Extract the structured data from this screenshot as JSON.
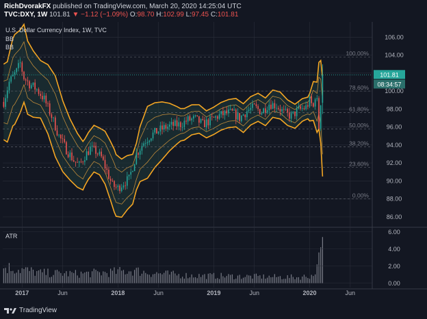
{
  "header": {
    "publisher": "RichDvorakFX",
    "published_text": "published on TradingView.com, March 20, 2020 14:25:04 UTC",
    "symbol": "TVC:DXY, 1W",
    "last": "101.81",
    "change": "▼ −1.12 (−1.09%)",
    "o_label": "O:",
    "o_value": "98.70",
    "h_label": "H:",
    "h_value": "102.99",
    "l_label": "L:",
    "l_value": "97.45",
    "c_label": "C:",
    "c_value": "101.81"
  },
  "indicators": {
    "title": "U.S. Dollar Currency Index, 1W, TVC",
    "bb1": "BB",
    "bb2": "BB",
    "atr": "ATR"
  },
  "footer": {
    "brand": "TradingView"
  },
  "colors": {
    "background": "#131722",
    "up": "#26a69a",
    "down": "#ef5350",
    "band_outer": "#f5a623",
    "band_inner": "#e8a33d",
    "band_fill": "#1f3b3a",
    "grid": "#2a2e39",
    "fib": "#5d606b",
    "price_tag": "#26a69a",
    "timer_tag": "#2a6f6b",
    "atr_bar": "#787b86"
  },
  "chart_data": {
    "type": "candlestick",
    "title": "U.S. Dollar Currency Index, 1W, TVC",
    "y_axis_ticks": [
      "86.00",
      "88.00",
      "90.00",
      "92.00",
      "94.00",
      "96.00",
      "98.00",
      "100.00",
      "102.00",
      "104.00",
      "106.00"
    ],
    "ylim": [
      85,
      107.7
    ],
    "x_axis_ticks": [
      "2017",
      "Jun",
      "2018",
      "Jun",
      "2019",
      "Jun",
      "2020",
      "Jun"
    ],
    "x_tick_weeks": [
      10,
      32,
      62,
      84,
      114,
      136,
      166,
      188
    ],
    "weeks_in_view": 196,
    "price_tag": "101.81",
    "countdown_tag": "08:34:57",
    "fibonacci": [
      {
        "label": "100.00%",
        "value": 103.8
      },
      {
        "label": "78.60%",
        "value": 100.0
      },
      {
        "label": "61.80%",
        "value": 97.6
      },
      {
        "label": "50.00%",
        "value": 95.8
      },
      {
        "label": "38.20%",
        "value": 93.8
      },
      {
        "label": "23.60%",
        "value": 91.5
      },
      {
        "label": "0.00%",
        "value": 88.0
      }
    ],
    "close_keyframes": [
      [
        0,
        98.8
      ],
      [
        3,
        101.0
      ],
      [
        7,
        102.2
      ],
      [
        9,
        103.1
      ],
      [
        11,
        101.5
      ],
      [
        14,
        100.8
      ],
      [
        18,
        100.2
      ],
      [
        22,
        99.1
      ],
      [
        26,
        97.2
      ],
      [
        30,
        95.0
      ],
      [
        34,
        93.5
      ],
      [
        38,
        92.3
      ],
      [
        41,
        91.7
      ],
      [
        44,
        92.8
      ],
      [
        47,
        93.6
      ],
      [
        50,
        93.3
      ],
      [
        53,
        92.6
      ],
      [
        56,
        91.1
      ],
      [
        59,
        89.5
      ],
      [
        62,
        89.2
      ],
      [
        65,
        89.8
      ],
      [
        68,
        90.2
      ],
      [
        72,
        93.0
      ],
      [
        76,
        94.3
      ],
      [
        80,
        95.1
      ],
      [
        84,
        95.6
      ],
      [
        88,
        96.0
      ],
      [
        92,
        96.2
      ],
      [
        96,
        96.3
      ],
      [
        100,
        96.8
      ],
      [
        104,
        96.9
      ],
      [
        108,
        96.3
      ],
      [
        112,
        96.7
      ],
      [
        116,
        97.2
      ],
      [
        120,
        97.5
      ],
      [
        124,
        97.6
      ],
      [
        128,
        97.0
      ],
      [
        132,
        97.8
      ],
      [
        136,
        98.2
      ],
      [
        140,
        97.7
      ],
      [
        144,
        98.6
      ],
      [
        148,
        98.4
      ],
      [
        152,
        97.6
      ],
      [
        156,
        97.2
      ],
      [
        160,
        97.9
      ],
      [
        164,
        98.2
      ],
      [
        166,
        98.9
      ],
      [
        168,
        98.2
      ],
      [
        169,
        99.5
      ],
      [
        170,
        98.8
      ],
      [
        171,
        96.0
      ],
      [
        172,
        98.8
      ],
      [
        173,
        102.0
      ]
    ],
    "band_width_keyframes": [
      [
        0,
        4.2
      ],
      [
        6,
        5.0
      ],
      [
        12,
        4.2
      ],
      [
        20,
        3.2
      ],
      [
        28,
        4.5
      ],
      [
        36,
        3.4
      ],
      [
        44,
        2.6
      ],
      [
        52,
        2.6
      ],
      [
        60,
        3.5
      ],
      [
        66,
        3.1
      ],
      [
        72,
        2.6
      ],
      [
        78,
        4.0
      ],
      [
        86,
        3.2
      ],
      [
        96,
        1.8
      ],
      [
        110,
        1.5
      ],
      [
        130,
        1.6
      ],
      [
        150,
        1.5
      ],
      [
        165,
        1.2
      ],
      [
        170,
        2.8
      ],
      [
        173,
        5.5
      ]
    ],
    "atr_keyframes": [
      [
        0,
        1.9
      ],
      [
        10,
        1.6
      ],
      [
        20,
        1.2
      ],
      [
        40,
        1.1
      ],
      [
        60,
        1.3
      ],
      [
        70,
        1.5
      ],
      [
        80,
        1.2
      ],
      [
        100,
        0.9
      ],
      [
        130,
        0.8
      ],
      [
        160,
        0.7
      ],
      [
        168,
        0.9
      ],
      [
        170,
        2.2
      ],
      [
        171,
        3.6
      ],
      [
        172,
        4.2
      ],
      [
        173,
        5.4
      ]
    ],
    "atr_ticks": [
      "0.00",
      "2.00",
      "4.00",
      "6.00"
    ],
    "atr_ylim": [
      -0.5,
      6.3
    ]
  }
}
